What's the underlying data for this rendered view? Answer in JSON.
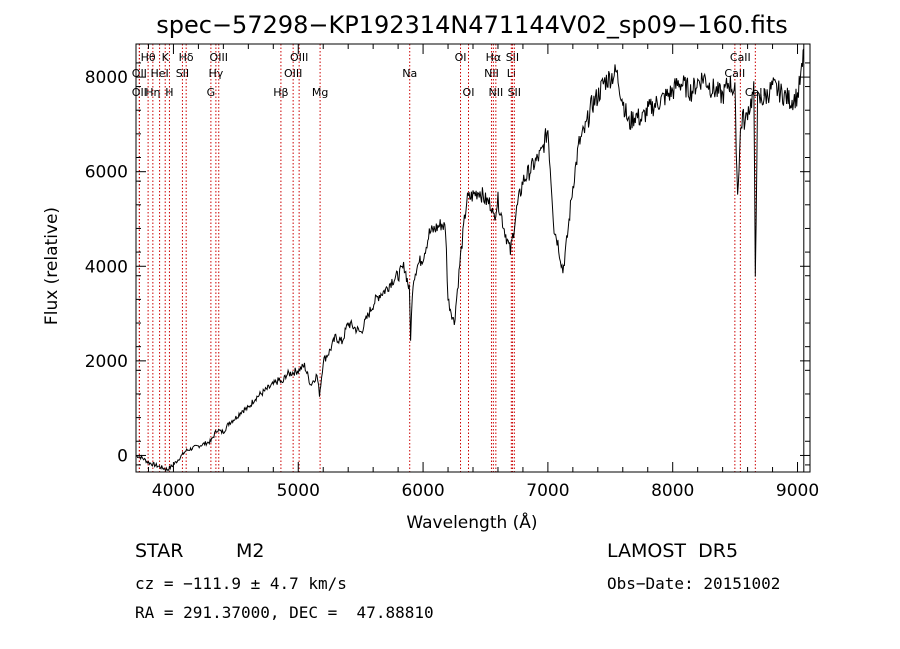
{
  "chart_data": {
    "type": "line",
    "title": "spec−57298−KP192314N471144V02_sp09−160.fits",
    "xlabel": "Wavelength (Å)",
    "ylabel": "Flux (relative)",
    "xlim": [
      3700,
      9100
    ],
    "ylim": [
      -350,
      8700
    ],
    "xticks": [
      4000,
      5000,
      6000,
      7000,
      8000,
      9000
    ],
    "yticks": [
      0,
      2000,
      4000,
      6000,
      8000
    ],
    "grid": false,
    "series": [
      {
        "x": [
          3700,
          3750,
          3800,
          3850,
          3900,
          3950,
          4000,
          4050,
          4100,
          4150,
          4200,
          4250,
          4300,
          4330,
          4350,
          4380,
          4400,
          4450,
          4500,
          4550,
          4600,
          4650,
          4700,
          4750,
          4800,
          4850,
          4870,
          4900,
          4950,
          5000,
          5050,
          5100,
          5150,
          5170,
          5180,
          5200,
          5250,
          5300,
          5350,
          5400,
          5450,
          5500,
          5550,
          5600,
          5650,
          5700,
          5750,
          5800,
          5850,
          5890,
          5900,
          5920,
          5950,
          6000,
          6050,
          6100,
          6150,
          6180,
          6200,
          6250,
          6300,
          6350,
          6400,
          6450,
          6500,
          6550,
          6563,
          6600,
          6650,
          6700,
          6750,
          6800,
          6850,
          6900,
          6950,
          7000,
          7050,
          7080,
          7100,
          7120,
          7150,
          7200,
          7250,
          7300,
          7350,
          7400,
          7450,
          7500,
          7550,
          7600,
          7650,
          7700,
          7750,
          7800,
          7850,
          7900,
          7950,
          8000,
          8050,
          8100,
          8150,
          8200,
          8250,
          8300,
          8350,
          8400,
          8450,
          8498,
          8520,
          8542,
          8560,
          8580,
          8600,
          8620,
          8650,
          8662,
          8680,
          8700,
          8750,
          8800,
          8850,
          8900,
          8950,
          9000,
          9020,
          9040,
          9050
        ],
        "y": [
          0,
          -50,
          -150,
          -200,
          -250,
          -300,
          -200,
          -50,
          100,
          150,
          200,
          250,
          300,
          450,
          550,
          500,
          500,
          700,
          800,
          950,
          1000,
          1200,
          1300,
          1400,
          1500,
          1600,
          1500,
          1700,
          1750,
          1800,
          1900,
          1500,
          1700,
          1300,
          1500,
          2000,
          2200,
          2500,
          2400,
          2800,
          2700,
          2600,
          2900,
          3200,
          3400,
          3500,
          3700,
          3800,
          4000,
          3500,
          2500,
          3700,
          4000,
          4200,
          4700,
          4800,
          4900,
          4800,
          3300,
          2800,
          4200,
          5400,
          5500,
          5600,
          5400,
          5300,
          5000,
          5400,
          4800,
          4300,
          5200,
          5800,
          6000,
          6200,
          6400,
          6900,
          4800,
          4500,
          4200,
          3900,
          4500,
          5700,
          6600,
          6900,
          7400,
          7600,
          7900,
          8000,
          8100,
          7500,
          7000,
          7200,
          7100,
          7300,
          7400,
          7500,
          7600,
          7700,
          7900,
          7800,
          7700,
          7900,
          8000,
          7800,
          7700,
          7600,
          7900,
          7700,
          5500,
          6800,
          7200,
          7000,
          7300,
          7400,
          7700,
          3800,
          7500,
          7500,
          7600,
          7800,
          7700,
          7600,
          7500,
          7600,
          7900,
          8200,
          8600
        ]
      }
    ],
    "spectral_lines": [
      {
        "wl": 3797,
        "label": "Hθ",
        "row": 1
      },
      {
        "wl": 3835,
        "label": "Hη",
        "row": 3
      },
      {
        "wl": 3727,
        "label": "OII",
        "row": 2
      },
      {
        "wl": 3727,
        "label": "OII",
        "row": 3
      },
      {
        "wl": 3889,
        "label": "HeI",
        "row": 2
      },
      {
        "wl": 3934,
        "label": "K",
        "row": 1
      },
      {
        "wl": 3968,
        "label": "H",
        "row": 3
      },
      {
        "wl": 4072,
        "label": "SII",
        "row": 2
      },
      {
        "wl": 4102,
        "label": "Hδ",
        "row": 1
      },
      {
        "wl": 4300,
        "label": "G",
        "row": 3
      },
      {
        "wl": 4340,
        "label": "Hγ",
        "row": 2
      },
      {
        "wl": 4363,
        "label": "OIII",
        "row": 1
      },
      {
        "wl": 4861,
        "label": "Hβ",
        "row": 3
      },
      {
        "wl": 4959,
        "label": "OIII",
        "row": 2
      },
      {
        "wl": 5007,
        "label": "OIII",
        "row": 1
      },
      {
        "wl": 5175,
        "label": "Mg",
        "row": 3
      },
      {
        "wl": 5893,
        "label": "Na",
        "row": 2
      },
      {
        "wl": 6300,
        "label": "OI",
        "row": 1
      },
      {
        "wl": 6364,
        "label": "OI",
        "row": 3
      },
      {
        "wl": 6548,
        "label": "NII",
        "row": 2
      },
      {
        "wl": 6563,
        "label": "Hα",
        "row": 1
      },
      {
        "wl": 6583,
        "label": "NII",
        "row": 3
      },
      {
        "wl": 6707,
        "label": "Li",
        "row": 2
      },
      {
        "wl": 6716,
        "label": "SII",
        "row": 1
      },
      {
        "wl": 6731,
        "label": "SII",
        "row": 3
      },
      {
        "wl": 8498,
        "label": "CaII",
        "row": 2
      },
      {
        "wl": 8542,
        "label": "CaII",
        "row": 1
      },
      {
        "wl": 8662,
        "label": "CaII",
        "row": 3
      }
    ],
    "line_color": "#000000",
    "marker_color": "#cc0000"
  },
  "info": {
    "obj_class": "STAR",
    "subclass": "M2",
    "survey": "LAMOST  DR5",
    "cz": "cz = −111.9 ± 4.7 km/s",
    "obs_date": "Obs−Date: 20151002",
    "radec": "RA = 291.37000, DEC =  47.88810"
  }
}
